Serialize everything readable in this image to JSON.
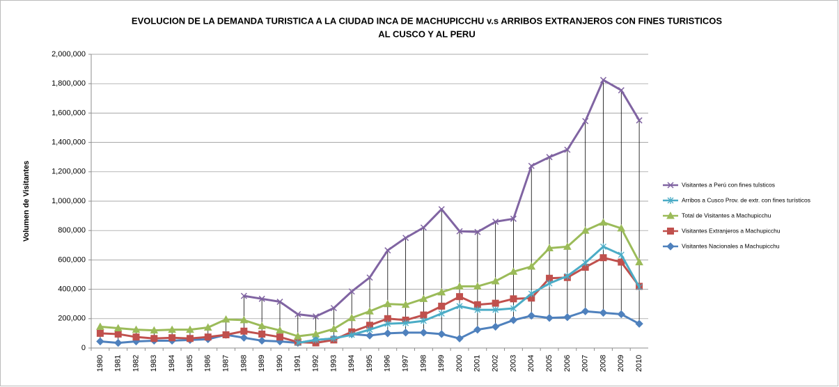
{
  "chart_data": {
    "type": "line",
    "title": [
      "EVOLUCION DE LA DEMANDA TURISTICA A LA CIUDAD INCA DE MACHUPICCHU v.s ARRIBOS EXTRANJEROS CON FINES TURISTICOS",
      "AL CUSCO Y AL PERU"
    ],
    "ylabel": "Volumen de Visitantes",
    "categories": [
      "1980",
      "1981",
      "1982",
      "1983",
      "1984",
      "1985",
      "1986",
      "1987",
      "1988",
      "1989",
      "1990",
      "1991",
      "1992",
      "1993",
      "1994",
      "1995",
      "1996",
      "1997",
      "1998",
      "1999",
      "2000",
      "2001",
      "2002",
      "2003",
      "2004",
      "2005",
      "2006",
      "2007",
      "2008",
      "2009",
      "2010"
    ],
    "ylim": [
      0,
      2000000
    ],
    "yticks": [
      0,
      {
        "value": 200000,
        "label": "200,000"
      },
      {
        "value": 400000,
        "label": "400,000"
      },
      {
        "value": 600000,
        "label": "600,000"
      },
      {
        "value": 800000,
        "label": "800,000"
      },
      {
        "value": 1000000,
        "label": "1,000,000"
      },
      {
        "value": 1200000,
        "label": "1,200,000"
      },
      {
        "value": 1400000,
        "label": "1,400,000"
      },
      {
        "value": 1600000,
        "label": "1,600,000"
      },
      {
        "value": 1800000,
        "label": "1,800,000"
      },
      {
        "value": 2000000,
        "label": "2,000,000"
      }
    ],
    "grid": true,
    "high_low_lines": true,
    "legend": "right",
    "series": [
      {
        "name": "Visitantes a Perú con fines tuîsticos",
        "color": "#8064a2",
        "marker": "x",
        "values": [
          null,
          null,
          null,
          null,
          null,
          null,
          null,
          null,
          355000,
          335000,
          315000,
          230000,
          215000,
          272000,
          385000,
          480000,
          665000,
          750000,
          820000,
          945000,
          795000,
          790000,
          860000,
          880000,
          1240000,
          1300000,
          1350000,
          1545000,
          1825000,
          1755000,
          1550000
        ]
      },
      {
        "name": "Arribos a Cusco Prov. de extr. con fines turísticos",
        "color": "#4bacc6",
        "marker": "star",
        "values": [
          null,
          null,
          null,
          null,
          null,
          null,
          null,
          null,
          null,
          null,
          null,
          35000,
          55000,
          65000,
          90000,
          125000,
          165000,
          170000,
          185000,
          235000,
          285000,
          260000,
          260000,
          270000,
          370000,
          440000,
          490000,
          580000,
          690000,
          635000,
          415000
        ]
      },
      {
        "name": "Total de Visitantes a Machupicchu",
        "color": "#9bbb59",
        "marker": "triangle",
        "values": [
          145000,
          135000,
          125000,
          120000,
          125000,
          125000,
          140000,
          195000,
          190000,
          150000,
          120000,
          80000,
          95000,
          130000,
          205000,
          250000,
          300000,
          295000,
          335000,
          380000,
          420000,
          420000,
          455000,
          520000,
          555000,
          680000,
          690000,
          800000,
          855000,
          815000,
          585000
        ]
      },
      {
        "name": "Visitantes Extranjeros a Machupicchu",
        "color": "#c0504d",
        "marker": "square",
        "values": [
          100000,
          95000,
          75000,
          65000,
          70000,
          65000,
          75000,
          90000,
          115000,
          95000,
          75000,
          40000,
          35000,
          55000,
          110000,
          155000,
          200000,
          190000,
          225000,
          285000,
          350000,
          295000,
          305000,
          335000,
          340000,
          475000,
          480000,
          550000,
          615000,
          585000,
          420000
        ]
      },
      {
        "name": "Visitantes Nacionales a Machupicchu",
        "color": "#4f81bd",
        "marker": "diamond",
        "values": [
          45000,
          35000,
          45000,
          50000,
          50000,
          55000,
          60000,
          90000,
          70000,
          50000,
          45000,
          35000,
          55000,
          65000,
          95000,
          85000,
          100000,
          105000,
          105000,
          95000,
          65000,
          125000,
          145000,
          190000,
          220000,
          205000,
          210000,
          250000,
          240000,
          230000,
          165000
        ]
      }
    ]
  }
}
